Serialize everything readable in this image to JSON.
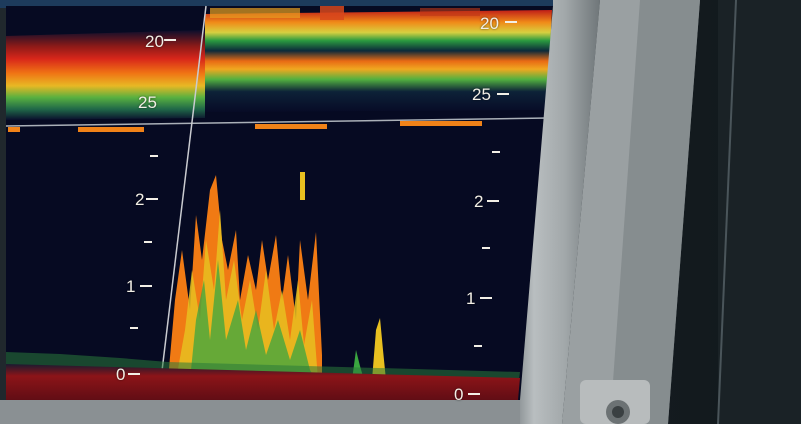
{
  "sonar": {
    "upper_depth_left": [
      "20",
      "25"
    ],
    "upper_depth_right": [
      "20",
      "25"
    ],
    "lower_depth_left": [
      "2",
      "1",
      "0"
    ],
    "lower_depth_right": [
      "2",
      "1",
      "0"
    ]
  },
  "colors": {
    "screen_background": "#060a22",
    "echo_red": "#c8201a",
    "echo_orange": "#f07a14",
    "echo_yellow": "#e8c020",
    "echo_green": "#3aa640",
    "bezel_gray": "#a7acae",
    "marker_orange": "#f08218"
  }
}
